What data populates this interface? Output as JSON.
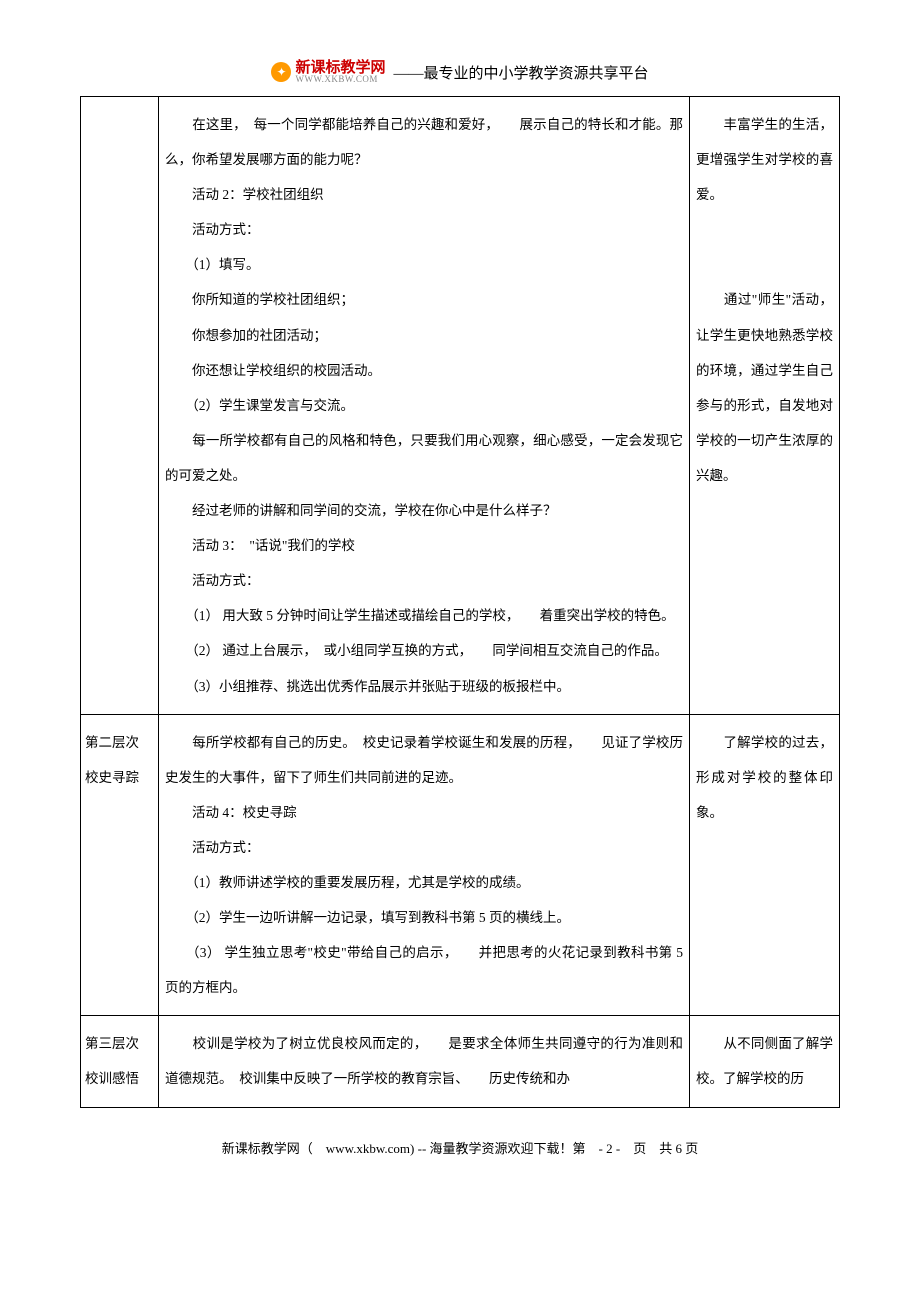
{
  "header": {
    "logo_brand": "新课标教学网",
    "logo_url": "WWW.XKBW.COM",
    "subtitle": "——最专业的中小学教学资源共享平台"
  },
  "rows": [
    {
      "left": "",
      "mid": [
        "　　在这里，　每一个同学都能培养自己的兴趣和爱好，　　展示自己的特长和才能。那么，你希望发展哪方面的能力呢？",
        "　　活动 2：学校社团组织",
        "　　活动方式：",
        "　　（1）填写。",
        "　　你所知道的学校社团组织；",
        "　　你想参加的社团活动；",
        "　　你还想让学校组织的校园活动。",
        "　　（2）学生课堂发言与交流。",
        "　　每一所学校都有自己的风格和特色，只要我们用心观察，细心感受，一定会发现它的可爱之处。",
        "　　经过老师的讲解和同学间的交流，学校在你心中是什么样子？",
        "　　活动 3：　\"话说\"我们的学校",
        "　　活动方式：",
        "　　（1） 用大致 5 分钟时间让学生描述或描绘自己的学校，　　着重突出学校的特色。",
        "　　（2） 通过上台展示，　或小组同学互换的方式，　　同学间相互交流自己的作品。",
        "　　（3）小组推荐、挑选出优秀作品展示并张贴于班级的板报栏中。"
      ],
      "right": [
        "　　丰富学生的生活，更增强学生对学校的喜爱。",
        "",
        "",
        "　　通过\"师生\"活动，让学生更快地熟悉学校的环境，通过学生自己参与的形式，自发地对学校的一切产生浓厚的兴趣。"
      ]
    },
    {
      "left": "第二层次\n校史寻踪",
      "mid": [
        "　　每所学校都有自己的历史。　校史记录着学校诞生和发展的历程，　　见证了学校历史发生的大事件，留下了师生们共同前进的足迹。",
        "　　活动 4：校史寻踪",
        "　　活动方式：",
        "　　（1）教师讲述学校的重要发展历程，尤其是学校的成绩。",
        "　　（2）学生一边听讲解一边记录，填写到教科书第 5 页的横线上。",
        "　　（3） 学生独立思考\"校史\"带给自己的启示，　　并把思考的火花记录到教科书第 5 页的方框内。"
      ],
      "right": [
        "　　了解学校的过去，形成对学校的整体印象。"
      ]
    },
    {
      "left": "第三层次\n校训感悟",
      "mid": [
        "　　校训是学校为了树立优良校风而定的，　　是要求全体师生共同遵守的行为准则和道德规范。　校训集中反映了一所学校的教育宗旨、　　历史传统和办"
      ],
      "right": [
        "　　从不同侧面了解学校。了解学校的历"
      ]
    }
  ],
  "footer": {
    "text_before_url": "新课标教学网（　",
    "url": "www.xkbw.com",
    "text_after_url": ") -- 海量教学资源欢迎下载！第　- 2 -　页　共 6 页"
  }
}
